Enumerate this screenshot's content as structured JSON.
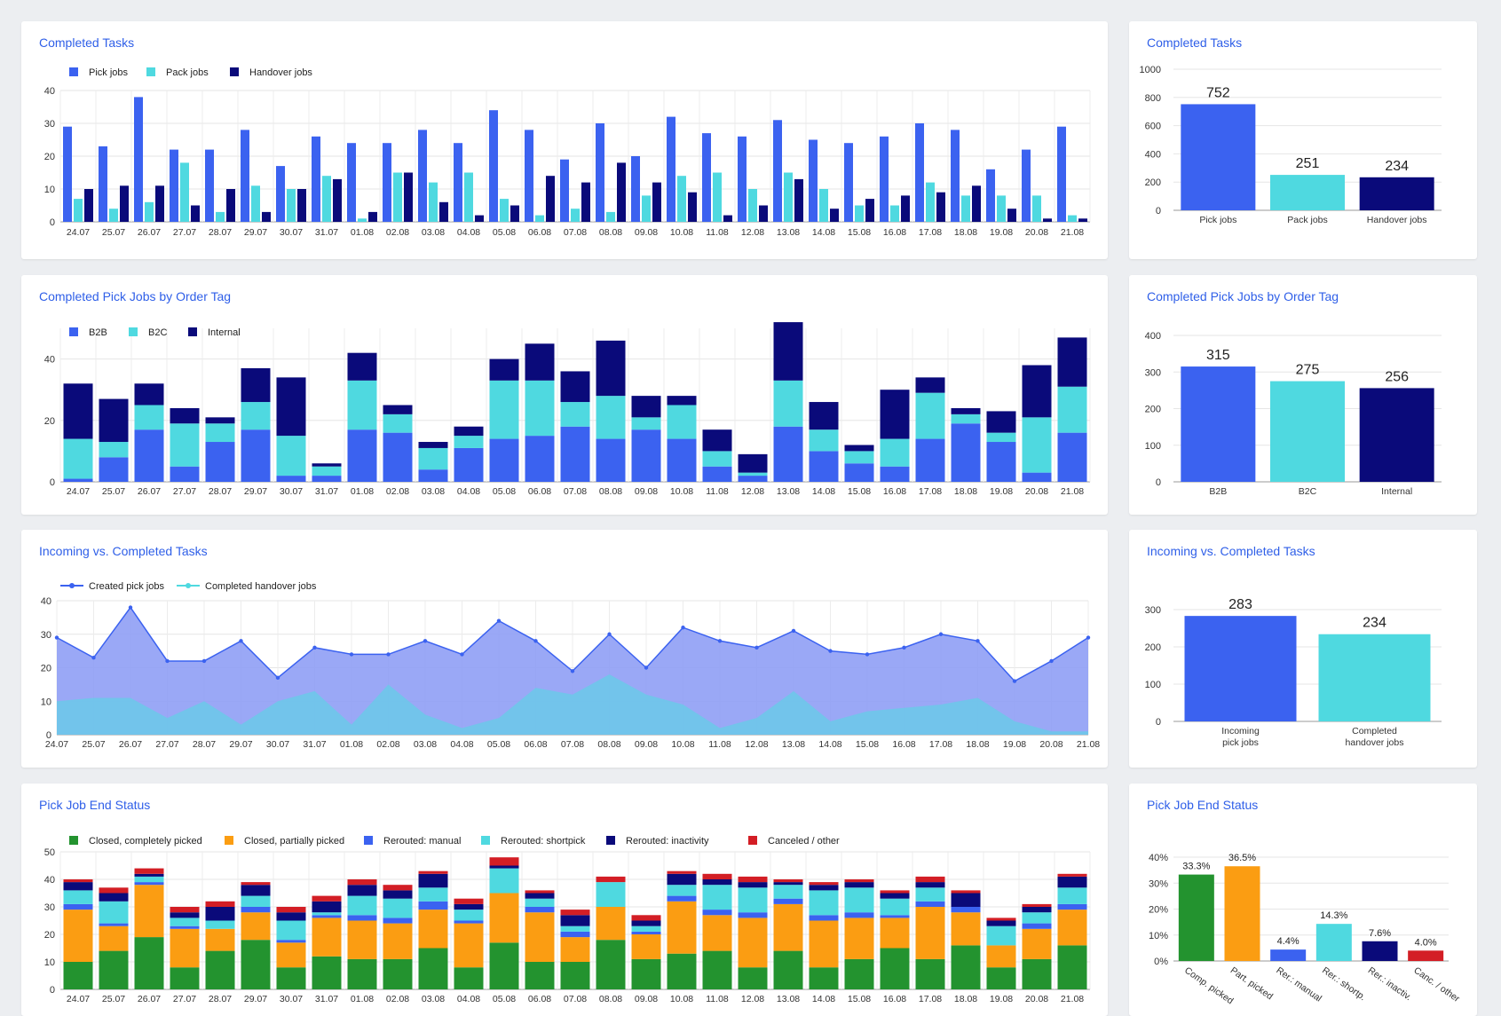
{
  "colors": {
    "pick": "#3b62f0",
    "pack": "#4fd9e0",
    "handover": "#0a0a7a",
    "green": "#23932f",
    "orange": "#fb9d12",
    "red": "#d31e25",
    "areaBlue": "#8f9ff5",
    "areaCyan": "#6ec6ea"
  },
  "panels": {
    "p1": {
      "title": "Completed Tasks"
    },
    "p2": {
      "title": "Completed Tasks"
    },
    "p3": {
      "title": "Completed Pick Jobs by Order Tag"
    },
    "p4": {
      "title": "Completed Pick Jobs by Order Tag"
    },
    "p5": {
      "title": "Incoming vs. Completed Tasks"
    },
    "p6": {
      "title": "Incoming vs. Completed Tasks"
    },
    "p7": {
      "title": "Pick Job End Status"
    },
    "p8": {
      "title": "Pick Job End Status"
    }
  },
  "chart_data": [
    {
      "id": "c1",
      "type": "bar",
      "title": "Completed Tasks",
      "categories": [
        "24.07",
        "25.07",
        "26.07",
        "27.07",
        "28.07",
        "29.07",
        "30.07",
        "31.07",
        "01.08",
        "02.08",
        "03.08",
        "04.08",
        "05.08",
        "06.08",
        "07.08",
        "08.08",
        "09.08",
        "10.08",
        "11.08",
        "12.08",
        "13.08",
        "14.08",
        "15.08",
        "16.08",
        "17.08",
        "18.08",
        "19.08",
        "20.08",
        "21.08"
      ],
      "ylim": [
        0,
        40
      ],
      "yticks": [
        0,
        10,
        20,
        30,
        40
      ],
      "grid": true,
      "legend": "top-left",
      "series": [
        {
          "name": "Pick jobs",
          "values": [
            29,
            23,
            38,
            22,
            22,
            28,
            17,
            26,
            24,
            24,
            28,
            24,
            34,
            28,
            19,
            30,
            20,
            32,
            27,
            26,
            31,
            25,
            24,
            26,
            30,
            28,
            16,
            22,
            29
          ]
        },
        {
          "name": "Pack jobs",
          "values": [
            7,
            4,
            6,
            18,
            3,
            11,
            10,
            14,
            1,
            15,
            12,
            15,
            7,
            2,
            4,
            3,
            8,
            14,
            15,
            10,
            15,
            10,
            5,
            5,
            12,
            8,
            8,
            8,
            2
          ]
        },
        {
          "name": "Handover jobs",
          "values": [
            10,
            11,
            11,
            5,
            10,
            3,
            10,
            13,
            3,
            15,
            6,
            2,
            5,
            14,
            12,
            18,
            12,
            9,
            2,
            5,
            13,
            4,
            7,
            8,
            9,
            11,
            4,
            1,
            1
          ]
        }
      ]
    },
    {
      "id": "c2",
      "type": "bar",
      "title": "Completed Tasks",
      "categories": [
        "Pick jobs",
        "Pack jobs",
        "Handover jobs"
      ],
      "values": [
        752,
        251,
        234
      ],
      "labels": [
        "752",
        "251",
        "234"
      ],
      "ylim": [
        0,
        1000
      ],
      "yticks": [
        0,
        200,
        400,
        600,
        800,
        1000
      ]
    },
    {
      "id": "c3",
      "type": "bar",
      "stacked": true,
      "title": "Completed Pick Jobs by Order Tag",
      "categories": [
        "24.07",
        "25.07",
        "26.07",
        "27.07",
        "28.07",
        "29.07",
        "30.07",
        "31.07",
        "01.08",
        "02.08",
        "03.08",
        "04.08",
        "05.08",
        "06.08",
        "07.08",
        "08.08",
        "09.08",
        "10.08",
        "11.08",
        "12.08",
        "13.08",
        "14.08",
        "15.08",
        "16.08",
        "17.08",
        "18.08",
        "19.08",
        "20.08",
        "21.08"
      ],
      "ylim": [
        0,
        50
      ],
      "yticks": [
        0,
        20,
        40
      ],
      "grid": true,
      "legend": "top-left",
      "series": [
        {
          "name": "B2B",
          "values": [
            1,
            8,
            17,
            5,
            13,
            17,
            2,
            2,
            17,
            16,
            4,
            11,
            14,
            15,
            18,
            14,
            17,
            14,
            5,
            2,
            18,
            10,
            6,
            5,
            14,
            19,
            13,
            3,
            16
          ]
        },
        {
          "name": "B2C",
          "values": [
            13,
            5,
            8,
            14,
            6,
            9,
            13,
            3,
            16,
            6,
            7,
            4,
            19,
            18,
            8,
            14,
            4,
            11,
            5,
            1,
            15,
            7,
            4,
            9,
            15,
            3,
            3,
            18,
            15
          ]
        },
        {
          "name": "Internal",
          "values": [
            18,
            14,
            7,
            5,
            2,
            11,
            19,
            1,
            9,
            3,
            2,
            3,
            7,
            12,
            10,
            18,
            7,
            3,
            7,
            6,
            19,
            9,
            2,
            16,
            5,
            2,
            7,
            17,
            16
          ]
        }
      ]
    },
    {
      "id": "c4",
      "type": "bar",
      "title": "Completed Pick Jobs by Order Tag",
      "categories": [
        "B2B",
        "B2C",
        "Internal"
      ],
      "values": [
        315,
        275,
        256
      ],
      "labels": [
        "315",
        "275",
        "256"
      ],
      "ylim": [
        0,
        400
      ],
      "yticks": [
        0,
        100,
        200,
        300,
        400
      ]
    },
    {
      "id": "c5",
      "type": "area",
      "title": "Incoming vs. Completed Tasks",
      "x": [
        "24.07",
        "25.07",
        "26.07",
        "27.07",
        "28.07",
        "29.07",
        "30.07",
        "31.07",
        "01.08",
        "02.08",
        "03.08",
        "04.08",
        "05.08",
        "06.08",
        "07.08",
        "08.08",
        "09.08",
        "10.08",
        "11.08",
        "12.08",
        "13.08",
        "14.08",
        "15.08",
        "16.08",
        "17.08",
        "18.08",
        "19.08",
        "20.08",
        "21.08"
      ],
      "ylim": [
        0,
        40
      ],
      "yticks": [
        0,
        10,
        20,
        30,
        40
      ],
      "grid": true,
      "legend": "top-left",
      "series": [
        {
          "name": "Created pick jobs",
          "values": [
            29,
            23,
            38,
            22,
            22,
            28,
            17,
            26,
            24,
            24,
            28,
            24,
            34,
            28,
            19,
            30,
            20,
            32,
            28,
            26,
            31,
            25,
            24,
            26,
            30,
            28,
            16,
            22,
            29
          ]
        },
        {
          "name": "Completed handover jobs",
          "values": [
            10,
            11,
            11,
            5,
            10,
            3,
            10,
            13,
            3,
            15,
            6,
            2,
            5,
            14,
            12,
            18,
            12,
            9,
            2,
            5,
            13,
            4,
            7,
            8,
            9,
            11,
            4,
            1,
            1
          ]
        }
      ]
    },
    {
      "id": "c6",
      "type": "bar",
      "title": "Incoming vs. Completed Tasks",
      "categories": [
        [
          "Incoming",
          "pick jobs"
        ],
        [
          "Completed",
          "handover jobs"
        ]
      ],
      "values": [
        283,
        234
      ],
      "labels": [
        "283",
        "234"
      ],
      "ylim": [
        0,
        300
      ],
      "yticks": [
        0,
        100,
        200,
        300
      ]
    },
    {
      "id": "c7",
      "type": "bar",
      "stacked": true,
      "title": "Pick Job End Status",
      "categories": [
        "24.07",
        "25.07",
        "26.07",
        "27.07",
        "28.07",
        "29.07",
        "30.07",
        "31.07",
        "01.08",
        "02.08",
        "03.08",
        "04.08",
        "05.08",
        "06.08",
        "07.08",
        "08.08",
        "09.08",
        "10.08",
        "11.08",
        "12.08",
        "13.08",
        "14.08",
        "15.08",
        "16.08",
        "17.08",
        "18.08",
        "19.08",
        "20.08",
        "21.08"
      ],
      "ylim": [
        0,
        50
      ],
      "yticks": [
        0,
        10,
        20,
        30,
        40,
        50
      ],
      "grid": true,
      "legend": "top-left",
      "series": [
        {
          "name": "Closed, completely picked",
          "values": [
            10,
            14,
            19,
            8,
            14,
            18,
            8,
            12,
            11,
            11,
            15,
            8,
            17,
            10,
            10,
            18,
            11,
            13,
            14,
            8,
            14,
            8,
            11,
            15,
            11,
            16,
            8,
            11,
            16
          ]
        },
        {
          "name": "Closed, partially picked",
          "values": [
            19,
            9,
            19,
            14,
            8,
            10,
            9,
            14,
            14,
            13,
            14,
            16,
            18,
            18,
            9,
            12,
            9,
            19,
            13,
            18,
            17,
            17,
            15,
            11,
            19,
            12,
            8,
            11,
            13
          ]
        },
        {
          "name": "Rerouted: manual",
          "values": [
            2,
            1,
            1,
            1,
            0,
            2,
            1,
            1,
            2,
            2,
            3,
            1,
            0,
            2,
            2,
            0,
            1,
            2,
            2,
            2,
            2,
            2,
            2,
            1,
            2,
            2,
            0,
            2,
            2
          ]
        },
        {
          "name": "Rerouted: shortpick",
          "values": [
            5,
            8,
            2,
            3,
            3,
            4,
            7,
            1,
            7,
            7,
            5,
            4,
            9,
            3,
            2,
            9,
            2,
            4,
            9,
            9,
            5,
            9,
            9,
            6,
            5,
            0,
            7,
            4,
            6
          ]
        },
        {
          "name": "Rerouted: inactivity",
          "values": [
            3,
            3,
            1,
            2,
            5,
            4,
            3,
            4,
            4,
            3,
            5,
            2,
            1,
            2,
            4,
            0,
            2,
            4,
            2,
            2,
            1,
            2,
            2,
            2,
            2,
            5,
            2,
            2,
            4
          ]
        },
        {
          "name": "Canceled / other",
          "values": [
            1,
            2,
            2,
            2,
            2,
            1,
            2,
            2,
            2,
            2,
            1,
            2,
            3,
            1,
            2,
            2,
            2,
            1,
            2,
            2,
            1,
            1,
            1,
            1,
            2,
            1,
            1,
            1,
            1
          ]
        }
      ]
    },
    {
      "id": "c8",
      "type": "bar",
      "title": "Pick Job End Status",
      "categories": [
        "Comp. picked",
        "Part. picked",
        "Rer.: manual",
        "Rer.: shortp.",
        "Rer.: inactiv.",
        "Canc. / other"
      ],
      "values": [
        33.3,
        36.5,
        4.4,
        14.3,
        7.6,
        4.0
      ],
      "labels": [
        "33.3%",
        "36.5%",
        "4.4%",
        "14.3%",
        "7.6%",
        "4.0%"
      ],
      "ylim": [
        0,
        40
      ],
      "yticks": [
        0,
        10,
        20,
        30,
        40
      ],
      "yticklabels": [
        "0%",
        "10%",
        "20%",
        "30%",
        "40%"
      ]
    }
  ]
}
